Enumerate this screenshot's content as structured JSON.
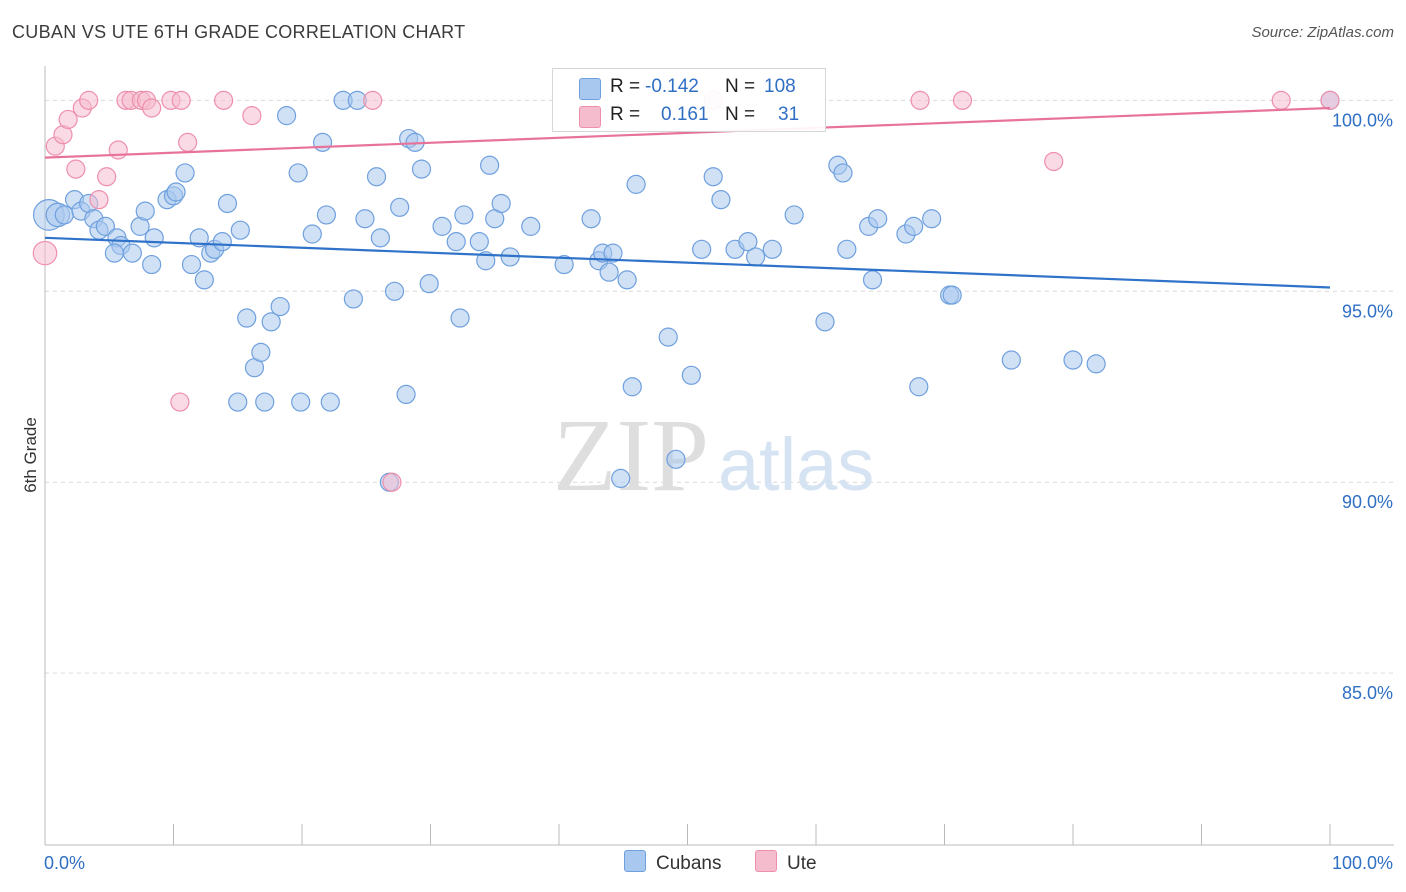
{
  "header": {
    "title": "CUBAN VS UTE 6TH GRADE CORRELATION CHART",
    "source": "Source: ZipAtlas.com"
  },
  "watermark": {
    "zip": "ZIP",
    "atlas": "atlas"
  },
  "stats": {
    "row1": {
      "r_label": "R =",
      "r_value": "-0.142",
      "n_label": "N =",
      "n_value": "108"
    },
    "row2": {
      "r_label": "R =",
      "r_value": "0.161",
      "n_label": "N =",
      "n_value": "31"
    }
  },
  "legend": {
    "cubans": "Cubans",
    "ute": "Ute"
  },
  "colors": {
    "cubans_fill": "#a9c8ef",
    "cubans_stroke": "#6fa0de",
    "cubans_line": "#2f72c9",
    "ute_fill": "#f5bccd",
    "ute_stroke": "#ee8fac",
    "ute_line": "#e8739a",
    "axis_label": "#2f6fc4",
    "grid": "#d9d9d9"
  },
  "chart_data": {
    "type": "scatter",
    "ylabel": "6th Grade",
    "xlim": [
      0,
      100
    ],
    "ylim": [
      80.5,
      100.9
    ],
    "x_tick_labels": [
      "0.0%",
      "100.0%"
    ],
    "y_ticks": [
      {
        "value": 100,
        "label": "100.0%"
      },
      {
        "value": 95,
        "label": "95.0%"
      },
      {
        "value": 90,
        "label": "90.0%"
      },
      {
        "value": 85,
        "label": "85.0%"
      }
    ],
    "grid": true,
    "series": [
      {
        "name": "Cubans",
        "trend": {
          "x0": 0,
          "y0": 96.4,
          "x1": 100,
          "y1": 95.1
        },
        "points": [
          [
            0.3,
            97.0,
            1.7
          ],
          [
            1.0,
            97.0,
            1.3
          ],
          [
            1.5,
            97.0,
            1
          ],
          [
            2.3,
            97.4,
            1
          ],
          [
            2.8,
            97.1,
            1
          ],
          [
            3.4,
            97.3,
            1
          ],
          [
            3.8,
            96.9,
            1
          ],
          [
            4.2,
            96.6,
            1
          ],
          [
            4.7,
            96.7,
            1
          ],
          [
            5.6,
            96.4,
            1
          ],
          [
            5.9,
            96.2,
            1
          ],
          [
            5.4,
            96.0,
            1
          ],
          [
            6.8,
            96.0,
            1
          ],
          [
            7.4,
            96.7,
            1
          ],
          [
            7.8,
            97.1,
            1
          ],
          [
            8.5,
            96.4,
            1
          ],
          [
            8.3,
            95.7,
            1
          ],
          [
            9.5,
            97.4,
            1
          ],
          [
            10.0,
            97.5,
            1
          ],
          [
            10.2,
            97.6,
            1
          ],
          [
            10.9,
            98.1,
            1
          ],
          [
            11.4,
            95.7,
            1
          ],
          [
            12.0,
            96.4,
            1
          ],
          [
            12.4,
            95.3,
            1
          ],
          [
            12.9,
            96.0,
            1
          ],
          [
            13.2,
            96.1,
            1
          ],
          [
            13.8,
            96.3,
            1
          ],
          [
            14.2,
            97.3,
            1
          ],
          [
            15.2,
            96.6,
            1
          ],
          [
            15.7,
            94.3,
            1
          ],
          [
            16.3,
            93.0,
            1
          ],
          [
            16.8,
            93.4,
            1
          ],
          [
            17.6,
            94.2,
            1
          ],
          [
            17.1,
            92.1,
            1
          ],
          [
            15.0,
            92.1,
            1
          ],
          [
            18.3,
            94.6,
            1
          ],
          [
            18.8,
            99.6,
            1
          ],
          [
            19.7,
            98.1,
            1
          ],
          [
            19.9,
            92.1,
            1
          ],
          [
            20.8,
            96.5,
            1
          ],
          [
            21.6,
            98.9,
            1
          ],
          [
            21.9,
            97.0,
            1
          ],
          [
            22.2,
            92.1,
            1
          ],
          [
            23.2,
            100.0,
            1
          ],
          [
            24.3,
            100.0,
            1
          ],
          [
            24.0,
            94.8,
            1
          ],
          [
            24.9,
            96.9,
            1
          ],
          [
            25.8,
            98.0,
            1
          ],
          [
            26.1,
            96.4,
            1
          ],
          [
            26.8,
            90.0,
            1
          ],
          [
            27.2,
            95.0,
            1
          ],
          [
            27.6,
            97.2,
            1
          ],
          [
            28.1,
            92.3,
            1
          ],
          [
            28.3,
            99.0,
            1
          ],
          [
            28.8,
            98.9,
            1
          ],
          [
            29.3,
            98.2,
            1
          ],
          [
            29.9,
            95.2,
            1
          ],
          [
            30.9,
            96.7,
            1
          ],
          [
            32.0,
            96.3,
            1
          ],
          [
            32.3,
            94.3,
            1
          ],
          [
            32.6,
            97.0,
            1
          ],
          [
            33.8,
            96.3,
            1
          ],
          [
            34.3,
            95.8,
            1
          ],
          [
            34.6,
            98.3,
            1
          ],
          [
            35.0,
            96.9,
            1
          ],
          [
            35.5,
            97.3,
            1
          ],
          [
            36.2,
            95.9,
            1
          ],
          [
            37.8,
            96.7,
            1
          ],
          [
            40.4,
            95.7,
            1
          ],
          [
            42.5,
            96.9,
            1
          ],
          [
            43.1,
            95.8,
            1
          ],
          [
            43.4,
            96.0,
            1
          ],
          [
            43.9,
            95.5,
            1
          ],
          [
            44.2,
            96.0,
            1
          ],
          [
            44.8,
            90.1,
            1
          ],
          [
            45.3,
            95.3,
            1
          ],
          [
            45.7,
            92.5,
            1
          ],
          [
            46.0,
            97.8,
            1
          ],
          [
            48.5,
            93.8,
            1
          ],
          [
            49.1,
            90.6,
            1
          ],
          [
            50.3,
            92.8,
            1
          ],
          [
            51.1,
            96.1,
            1
          ],
          [
            52.0,
            98.0,
            1
          ],
          [
            52.6,
            97.4,
            1
          ],
          [
            53.7,
            96.1,
            1
          ],
          [
            54.7,
            96.3,
            1
          ],
          [
            55.3,
            95.9,
            1
          ],
          [
            56.6,
            96.1,
            1
          ],
          [
            58.3,
            97.0,
            1
          ],
          [
            60.7,
            94.2,
            1
          ],
          [
            61.7,
            98.3,
            1
          ],
          [
            62.1,
            98.1,
            1
          ],
          [
            62.4,
            96.1,
            1
          ],
          [
            64.1,
            96.7,
            1
          ],
          [
            64.4,
            95.3,
            1
          ],
          [
            64.8,
            96.9,
            1
          ],
          [
            67.0,
            96.5,
            1
          ],
          [
            67.6,
            96.7,
            1
          ],
          [
            68.0,
            92.5,
            1
          ],
          [
            69.0,
            96.9,
            1
          ],
          [
            70.4,
            94.9,
            1
          ],
          [
            70.6,
            94.9,
            1
          ],
          [
            75.2,
            93.2,
            1
          ],
          [
            80.0,
            93.2,
            1
          ],
          [
            81.8,
            93.1,
            1
          ],
          [
            100.0,
            100.0,
            1
          ]
        ]
      },
      {
        "name": "Ute",
        "trend": {
          "x0": 0,
          "y0": 98.5,
          "x1": 100,
          "y1": 99.8
        },
        "points": [
          [
            0.0,
            96.0,
            1.3
          ],
          [
            0.8,
            98.8,
            1
          ],
          [
            1.4,
            99.1,
            1
          ],
          [
            1.8,
            99.5,
            1
          ],
          [
            2.4,
            98.2,
            1
          ],
          [
            2.9,
            99.8,
            1
          ],
          [
            3.4,
            100.0,
            1
          ],
          [
            4.2,
            97.4,
            1
          ],
          [
            4.8,
            98.0,
            1
          ],
          [
            5.7,
            98.7,
            1
          ],
          [
            6.3,
            100.0,
            1
          ],
          [
            6.7,
            100.0,
            1
          ],
          [
            7.5,
            100.0,
            1
          ],
          [
            7.9,
            100.0,
            1
          ],
          [
            8.3,
            99.8,
            1
          ],
          [
            9.8,
            100.0,
            1
          ],
          [
            10.6,
            100.0,
            1
          ],
          [
            11.1,
            98.9,
            1
          ],
          [
            10.5,
            92.1,
            1
          ],
          [
            13.9,
            100.0,
            1
          ],
          [
            16.1,
            99.6,
            1
          ],
          [
            25.5,
            100.0,
            1
          ],
          [
            27.0,
            90.0,
            1
          ],
          [
            52.0,
            100.0,
            1
          ],
          [
            68.1,
            100.0,
            1
          ],
          [
            71.4,
            100.0,
            1
          ],
          [
            78.5,
            98.4,
            1
          ],
          [
            96.2,
            100.0,
            1
          ],
          [
            100.0,
            100.0,
            1
          ]
        ]
      }
    ]
  }
}
